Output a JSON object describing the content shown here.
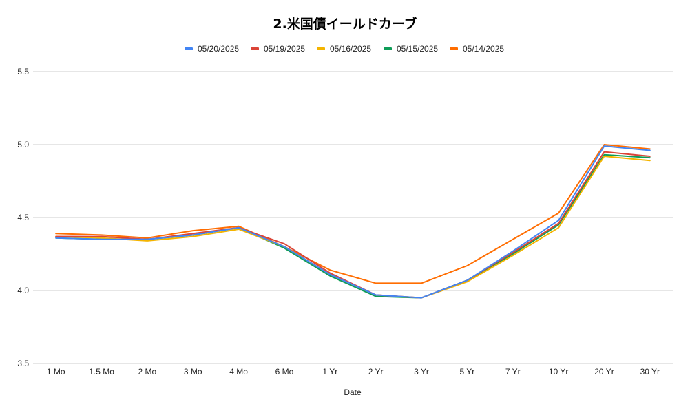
{
  "chart_data": {
    "type": "line",
    "title": "2.米国債イールドカーブ",
    "xlabel": "Date",
    "ylabel": "",
    "ylim": [
      3.5,
      5.5
    ],
    "yticks": [
      "3.5",
      "4.0",
      "4.5",
      "5.0",
      "5.5"
    ],
    "ytick_values": [
      3.5,
      4.0,
      4.5,
      5.0,
      5.5
    ],
    "grid": true,
    "legend_position": "top",
    "categories": [
      "1 Mo",
      "1.5 Mo",
      "2 Mo",
      "3 Mo",
      "4 Mo",
      "6 Mo",
      "1 Yr",
      "2 Yr",
      "3 Yr",
      "5 Yr",
      "7 Yr",
      "10 Yr",
      "20 Yr",
      "30 Yr"
    ],
    "series": [
      {
        "name": "05/20/2025",
        "color": "#4285f4",
        "values": [
          4.36,
          4.35,
          4.35,
          4.38,
          4.43,
          4.3,
          4.11,
          3.97,
          3.95,
          4.07,
          4.27,
          4.48,
          4.99,
          4.96
        ]
      },
      {
        "name": "05/19/2025",
        "color": "#db4437",
        "values": [
          4.37,
          4.37,
          4.35,
          4.39,
          4.43,
          4.32,
          4.12,
          3.97,
          3.95,
          4.07,
          4.26,
          4.46,
          4.95,
          4.92
        ]
      },
      {
        "name": "05/16/2025",
        "color": "#f4b400",
        "values": [
          4.37,
          4.36,
          4.34,
          4.37,
          4.42,
          4.3,
          4.11,
          3.97,
          3.95,
          4.06,
          4.24,
          4.43,
          4.92,
          4.89
        ]
      },
      {
        "name": "05/15/2025",
        "color": "#0f9d58",
        "values": [
          4.36,
          4.35,
          4.35,
          4.38,
          4.43,
          4.29,
          4.1,
          3.96,
          3.95,
          4.07,
          4.25,
          4.45,
          4.93,
          4.91
        ]
      },
      {
        "name": "05/14/2025",
        "color": "#ff6d01",
        "values": [
          4.39,
          4.38,
          4.36,
          4.41,
          4.44,
          4.3,
          4.14,
          4.05,
          4.05,
          4.17,
          4.35,
          4.53,
          5.0,
          4.97
        ]
      }
    ]
  }
}
